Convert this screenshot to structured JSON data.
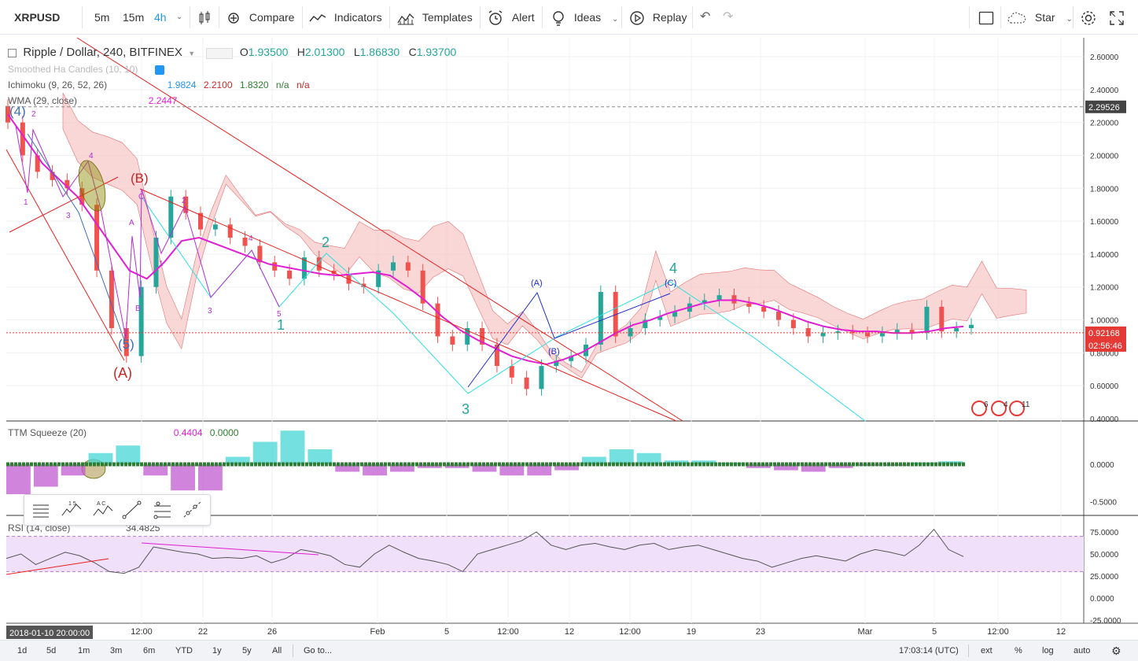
{
  "topbar": {
    "symbol": "XRPUSD",
    "intervals": [
      "5m",
      "15m",
      "4h"
    ],
    "active_interval": "4h",
    "compare": "Compare",
    "indicators": "Indicators",
    "templates": "Templates",
    "alert": "Alert",
    "ideas": "Ideas",
    "replay": "Replay",
    "star": "Star"
  },
  "legend": {
    "title": "Ripple / Dollar, 240, BITFINEX",
    "o_label": "O",
    "o": "1.93500",
    "h_label": "H",
    "h": "2.01300",
    "l_label": "L",
    "l": "1.86830",
    "c_label": "C",
    "c": "1.93700",
    "smoothed": "Smoothed Ha Candles (10, 10)",
    "ichimoku": "Ichimoku (9, 26, 52, 26)",
    "ichi_v1": "1.9824",
    "ichi_v2": "2.2100",
    "ichi_v3": "1.8320",
    "ichi_v4": "n/a",
    "ichi_v5": "n/a",
    "wma": "WMA (29, close)",
    "wma_v": "2.2447",
    "ttm": "TTM Squeeze (20)",
    "ttm_v1": "0.4404",
    "ttm_v2": "0.0000",
    "rsi": "RSI (14, close)",
    "rsi_v": "34.4825"
  },
  "colors": {
    "up": "#26a69a",
    "down": "#ef5350",
    "wma": "#e01fd2",
    "cloud_red": "#f7c6c6",
    "cloud_green": "#cfe8cf",
    "trend_red": "#e8211f",
    "wave_cyan": "#2ee0e0",
    "rsi_band": "#f0e0fa"
  },
  "chart_data": [
    {
      "type": "candlestick",
      "panel": "price",
      "y_ticks": [
        "2.60000",
        "2.40000",
        "2.20000",
        "2.00000",
        "1.80000",
        "1.60000",
        "1.40000",
        "1.20000",
        "1.00000",
        "0.80000",
        "0.60000",
        "0.40000"
      ],
      "ylim": [
        0.4,
        2.7
      ],
      "x_ticks": [
        "12:00",
        "22",
        "26",
        "Feb",
        "5",
        "12:00",
        "12",
        "12:00",
        "19",
        "23",
        "Mar",
        "5",
        "12:00",
        "12"
      ],
      "crosshair_date": "2018-01-10 20:00:00",
      "labels_on_axis": {
        "crosshair_price": "2.29526",
        "last_price": "0.92168",
        "countdown": "02:56:46"
      },
      "close_series": [
        2.2,
        2.0,
        1.9,
        1.85,
        1.8,
        1.7,
        1.3,
        0.95,
        0.78,
        1.2,
        1.5,
        1.75,
        1.65,
        1.55,
        1.58,
        1.5,
        1.45,
        1.35,
        1.3,
        1.25,
        1.38,
        1.3,
        1.28,
        1.22,
        1.2,
        1.3,
        1.35,
        1.3,
        1.1,
        0.9,
        0.85,
        0.95,
        0.85,
        0.72,
        0.65,
        0.58,
        0.72,
        0.75,
        0.78,
        0.85,
        1.17,
        0.9,
        0.95,
        1.0,
        1.02,
        1.05,
        1.1,
        1.12,
        1.15,
        1.1,
        1.08,
        1.05,
        1.0,
        0.95,
        0.9,
        0.92,
        0.93,
        0.92,
        0.9,
        0.92,
        0.94,
        0.92,
        1.08,
        0.93,
        0.95,
        0.97
      ],
      "wma_series": [
        2.25,
        2.1,
        1.95,
        1.85,
        1.75,
        1.6,
        1.45,
        1.3,
        1.25,
        1.35,
        1.48,
        1.5,
        1.46,
        1.42,
        1.38,
        1.34,
        1.32,
        1.3,
        1.28,
        1.27,
        1.28,
        1.29,
        1.27,
        1.2,
        1.12,
        1.02,
        0.94,
        0.88,
        0.83,
        0.78,
        0.75,
        0.73,
        0.76,
        0.8,
        0.86,
        0.92,
        0.97,
        1.0,
        1.04,
        1.07,
        1.1,
        1.12,
        1.12,
        1.1,
        1.07,
        1.03,
        0.99,
        0.96,
        0.94,
        0.93,
        0.93,
        0.92,
        0.92,
        0.93,
        0.95,
        0.96
      ],
      "wave_labels": [
        "(4)",
        "2",
        "4",
        "(B)",
        "1",
        "3",
        "(5)",
        "(A)",
        "C",
        "A",
        "B",
        "2",
        "1",
        "3",
        "4",
        "5",
        "2",
        "1",
        "3",
        "(A)",
        "(B)",
        "(C)",
        "4",
        "3"
      ]
    },
    {
      "type": "histogram",
      "panel": "TTM Squeeze (20)",
      "y_ticks": [
        "0.0000",
        "-0.5000"
      ],
      "values": [
        -0.4,
        -0.3,
        -0.15,
        0.15,
        0.25,
        -0.15,
        -0.35,
        -0.35,
        0.1,
        0.3,
        0.45,
        0.2,
        -0.1,
        -0.15,
        -0.1,
        -0.05,
        -0.05,
        -0.1,
        -0.15,
        -0.15,
        -0.08,
        0.1,
        0.2,
        0.15,
        0.05,
        0.05,
        0.02,
        -0.05,
        -0.08,
        -0.1,
        -0.05,
        -0.02,
        -0.02,
        0.02,
        0.04
      ]
    },
    {
      "type": "line",
      "panel": "RSI (14, close)",
      "y_ticks": [
        "75.0000",
        "50.0000",
        "25.0000",
        "0.0000",
        "-25.0000"
      ],
      "ylim": [
        -25,
        85
      ],
      "band": [
        30,
        70
      ],
      "values": [
        45,
        50,
        38,
        45,
        52,
        48,
        40,
        30,
        28,
        35,
        58,
        55,
        52,
        50,
        45,
        46,
        45,
        48,
        40,
        45,
        55,
        52,
        48,
        38,
        35,
        50,
        60,
        52,
        45,
        42,
        38,
        30,
        50,
        55,
        60,
        65,
        75,
        60,
        55,
        60,
        62,
        58,
        55,
        60,
        62,
        55,
        58,
        60,
        55,
        50,
        45,
        42,
        35,
        40,
        45,
        48,
        45,
        42,
        50,
        55,
        52,
        48,
        60,
        78,
        55,
        47
      ]
    }
  ],
  "bottombar": {
    "ranges": [
      "1d",
      "5d",
      "1m",
      "3m",
      "6m",
      "YTD",
      "1y",
      "5y",
      "All"
    ],
    "goto": "Go to...",
    "clock": "17:03:14 (UTC)",
    "opts": [
      "ext",
      "%",
      "log",
      "auto"
    ]
  },
  "drawtools": {
    "t1": "1 5",
    "t2": "A C"
  },
  "events": {
    "e1": "6",
    "e2": "4",
    "e3": "11"
  }
}
